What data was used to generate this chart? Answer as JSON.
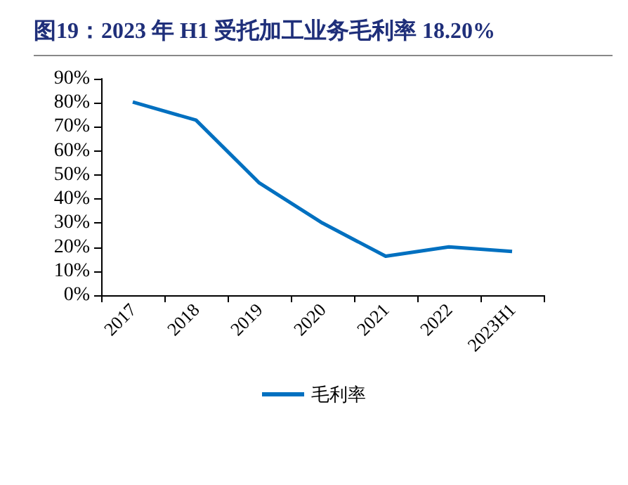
{
  "chart_data": {
    "type": "line",
    "title": "图19：2023 年 H1 受托加工业务毛利率 18.20%",
    "categories": [
      "2017",
      "2018",
      "2019",
      "2020",
      "2021",
      "2022",
      "2023H1"
    ],
    "series": [
      {
        "name": "毛利率",
        "color": "#0070c0",
        "values": [
          80.3,
          72.8,
          46.7,
          30,
          16.2,
          20.1,
          18.2
        ]
      }
    ],
    "ylim": [
      0,
      90
    ],
    "yticks": [
      {
        "value": 0,
        "label": "0%"
      },
      {
        "value": 10,
        "label": "10%"
      },
      {
        "value": 20,
        "label": "20%"
      },
      {
        "value": 30,
        "label": "30%"
      },
      {
        "value": 40,
        "label": "40%"
      },
      {
        "value": 50,
        "label": "50%"
      },
      {
        "value": 60,
        "label": "60%"
      },
      {
        "value": 70,
        "label": "70%"
      },
      {
        "value": 80,
        "label": "80%"
      },
      {
        "value": 90,
        "label": "90%"
      }
    ],
    "grid": false,
    "legend": "bottom",
    "marker": "none",
    "line_style": "solid"
  }
}
